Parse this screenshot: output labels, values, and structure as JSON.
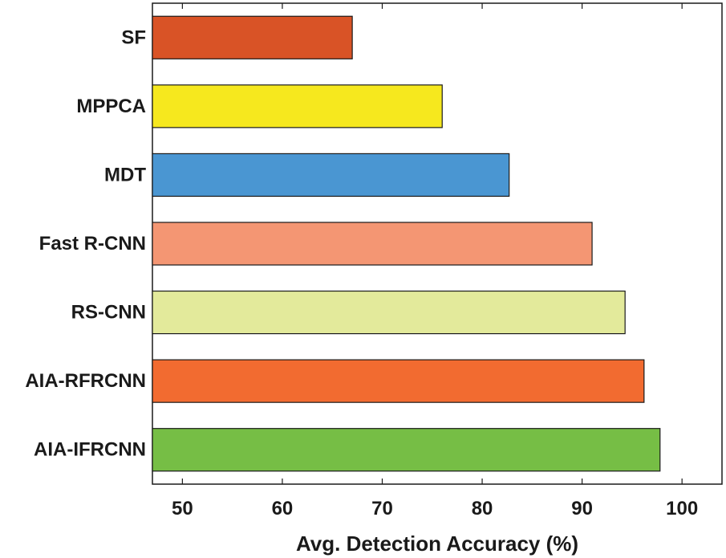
{
  "chart_data": {
    "type": "bar",
    "orientation": "horizontal",
    "title": "",
    "xlabel": "Avg. Detection Accuracy (%)",
    "ylabel": "",
    "xlim": [
      47,
      104
    ],
    "xticks": [
      50,
      60,
      70,
      80,
      90,
      100
    ],
    "grid": false,
    "categories": [
      "SF",
      "MPPCA",
      "MDT",
      "Fast R-CNN",
      "RS-CNN",
      "AIA-RFRCNN",
      "AIA-IFRCNN"
    ],
    "values": [
      67,
      76,
      82.7,
      91,
      94.3,
      96.2,
      97.8
    ],
    "colors": [
      "#D95326",
      "#F6E81E",
      "#4A96D2",
      "#F49673",
      "#E3EA9B",
      "#F26B30",
      "#76BE45"
    ]
  }
}
